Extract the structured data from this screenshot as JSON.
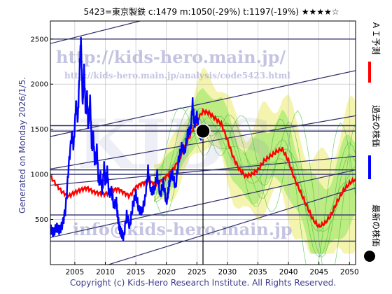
{
  "chart_data": {
    "type": "line",
    "title": "5423=東京製鉄 c:1479 m:1050(-29%) t:1197(-19%) ★★★★☆",
    "side_note": "Generated on Monday 2026/1/5.",
    "footer": "Copyright (c) Kids-Hero Research Institute. All Rights Reserved.",
    "watermarks": [
      "http://kids-hero.main.jp/",
      "http://kids-hero.main.jp/analysis/code5423.html",
      "KIDS",
      "info@kids-hero.main.jp"
    ],
    "xlim": [
      2001,
      2051
    ],
    "ylim": [
      0,
      2700
    ],
    "x_ticks": [
      2005,
      2010,
      2015,
      2020,
      2025,
      2030,
      2035,
      2040,
      2045,
      2050
    ],
    "y_ticks": [
      500,
      1000,
      1500,
      2000,
      2500
    ],
    "grid": true,
    "legend_position": "right",
    "colors": {
      "past": "#0000ff",
      "forecast": "#ff0000",
      "band_light": "#f2f2a0",
      "band_green": "#b2ea7a",
      "line_green": "#33bb33",
      "trend": "#30306e",
      "current": "#000000"
    },
    "current_point": {
      "x": 2026.0,
      "y": 1479
    },
    "horizontal_levels": [
      2500,
      1540,
      1480,
      1050,
      1000,
      550,
      260
    ],
    "trend_lines": [
      {
        "x": [
          2001,
          2051
        ],
        "y": [
          2450,
          3300
        ]
      },
      {
        "x": [
          2001,
          2051
        ],
        "y": [
          1420,
          2150
        ]
      },
      {
        "x": [
          2001,
          2051
        ],
        "y": [
          1060,
          1650
        ]
      },
      {
        "x": [
          2001,
          2051
        ],
        "y": [
          880,
          1200
        ]
      },
      {
        "x": [
          2001,
          2051
        ],
        "y": [
          300,
          1050
        ]
      },
      {
        "x": [
          2001,
          2051
        ],
        "y": [
          -200,
          850
        ]
      }
    ],
    "series": [
      {
        "name": "過去の株価",
        "color": "#0000ff",
        "x": [
          2001.0,
          2001.5,
          2002.0,
          2002.5,
          2003.0,
          2003.5,
          2004.0,
          2004.5,
          2004.8,
          2005.2,
          2005.5,
          2005.8,
          2006.0,
          2006.3,
          2006.5,
          2006.8,
          2007.0,
          2007.2,
          2007.5,
          2007.8,
          2008.0,
          2008.3,
          2008.6,
          2008.9,
          2009.2,
          2009.5,
          2009.8,
          2010.0,
          2010.3,
          2010.6,
          2011.0,
          2011.4,
          2011.8,
          2012.0,
          2012.3,
          2012.6,
          2013.0,
          2013.5,
          2014.0,
          2014.5,
          2015.0,
          2015.5,
          2016.0,
          2016.5,
          2017.0,
          2017.5,
          2018.0,
          2018.5,
          2019.0,
          2019.5,
          2020.0,
          2020.3,
          2020.6,
          2021.0,
          2021.5,
          2022.0,
          2022.5,
          2023.0,
          2023.5,
          2024.0,
          2024.3,
          2024.6,
          2025.0,
          2025.3,
          2025.6,
          2026.0
        ],
        "y": [
          400,
          350,
          420,
          380,
          450,
          620,
          1100,
          1450,
          1300,
          1800,
          1600,
          2200,
          2500,
          1750,
          2200,
          1650,
          1900,
          1500,
          1850,
          1250,
          1450,
          1100,
          1300,
          900,
          1000,
          800,
          1100,
          900,
          1050,
          780,
          820,
          650,
          700,
          550,
          400,
          350,
          300,
          550,
          420,
          650,
          780,
          600,
          580,
          720,
          1050,
          800,
          820,
          1000,
          760,
          900,
          680,
          800,
          950,
          1000,
          850,
          1150,
          1300,
          1250,
          1450,
          1500,
          1800,
          1550,
          1650,
          1500,
          1420,
          1479
        ]
      },
      {
        "name": "ＡＩ予測",
        "color": "#ff0000",
        "x": [
          2001.0,
          2002.0,
          2003.0,
          2004.0,
          2005.0,
          2006.0,
          2007.0,
          2008.0,
          2009.0,
          2010.0,
          2011.0,
          2012.0,
          2013.0,
          2014.0,
          2015.0,
          2016.0,
          2017.0,
          2018.0,
          2019.0,
          2020.0,
          2021.0,
          2022.0,
          2023.0,
          2024.0,
          2025.0,
          2026.0,
          2027.0,
          2028.0,
          2029.0,
          2030.0,
          2031.0,
          2032.0,
          2033.0,
          2034.0,
          2035.0,
          2036.0,
          2037.0,
          2038.0,
          2039.0,
          2040.0,
          2041.0,
          2042.0,
          2043.0,
          2044.0,
          2045.0,
          2046.0,
          2047.0,
          2048.0,
          2049.0,
          2050.0,
          2051.0
        ],
        "y": [
          980,
          880,
          800,
          760,
          800,
          830,
          850,
          810,
          790,
          780,
          820,
          840,
          800,
          760,
          860,
          900,
          920,
          900,
          920,
          980,
          1050,
          1150,
          1300,
          1450,
          1600,
          1700,
          1680,
          1620,
          1560,
          1380,
          1180,
          1050,
          980,
          1000,
          1050,
          1150,
          1200,
          1250,
          1280,
          1150,
          950,
          800,
          650,
          500,
          420,
          460,
          550,
          700,
          820,
          900,
          950
        ]
      }
    ]
  }
}
